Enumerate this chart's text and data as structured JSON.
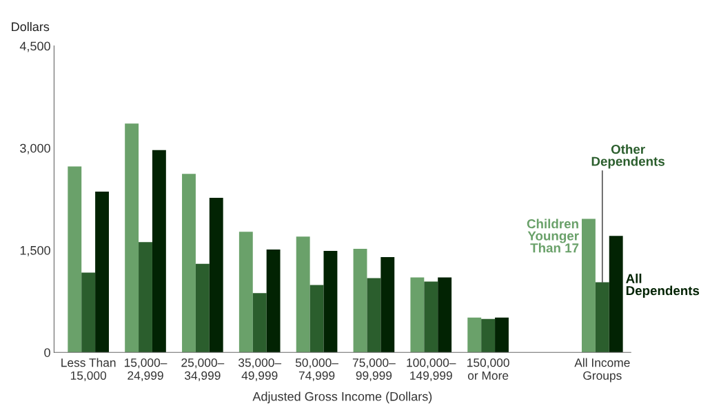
{
  "chart_data": {
    "type": "bar",
    "ylabel": "Dollars",
    "xlabel": "Adjusted Gross Income (Dollars)",
    "categories": [
      "Less Than\n15,000",
      "15,000–\n24,999",
      "25,000–\n34,999",
      "35,000–\n49,999",
      "50,000–\n74,999",
      "75,000–\n99,999",
      "100,000–\n149,999",
      "150,000\nor More",
      null,
      "All Income\nGroups"
    ],
    "series": [
      {
        "name": "Children\nYounger\nThan 17",
        "color": "#6aa16a",
        "values": [
          2730,
          3360,
          2620,
          1770,
          1700,
          1520,
          1100,
          510,
          null,
          1960
        ]
      },
      {
        "name": "Other\nDependents",
        "color": "#2b5e2d",
        "values": [
          1170,
          1620,
          1300,
          870,
          990,
          1090,
          1040,
          490,
          null,
          1030
        ]
      },
      {
        "name": "All\nDependents",
        "color": "#022303",
        "values": [
          2360,
          2970,
          2270,
          1510,
          1490,
          1400,
          1100,
          510,
          null,
          1710
        ]
      }
    ],
    "ylim": [
      0,
      4500
    ],
    "yticks": [
      0,
      {
        "value": 1500,
        "label": "1,500"
      },
      {
        "value": 3000,
        "label": "3,000"
      },
      {
        "value": 4500,
        "label": "4,500"
      }
    ],
    "grid": false,
    "legend": false
  }
}
